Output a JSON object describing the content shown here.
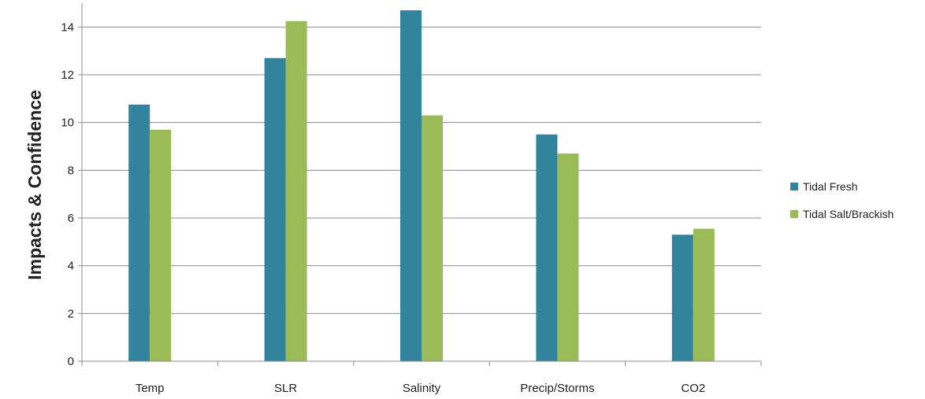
{
  "chart_data": {
    "type": "bar",
    "title": "",
    "xlabel": "",
    "ylabel": "Impacts & Confidence",
    "categories": [
      "Temp",
      "SLR",
      "Salinity",
      "Precip/Storms",
      "CO2"
    ],
    "series": [
      {
        "name": "Tidal Fresh",
        "color": "#31849B",
        "values": [
          10.75,
          12.7,
          14.7,
          9.5,
          5.3
        ]
      },
      {
        "name": "Tidal Salt/Brackish",
        "color": "#9BBB59",
        "values": [
          9.7,
          14.25,
          10.3,
          8.7,
          5.55
        ]
      }
    ],
    "ylim": [
      0,
      15
    ],
    "yticks": [
      0,
      2,
      4,
      6,
      8,
      10,
      12,
      14
    ],
    "grid": true,
    "legend_position": "right"
  }
}
